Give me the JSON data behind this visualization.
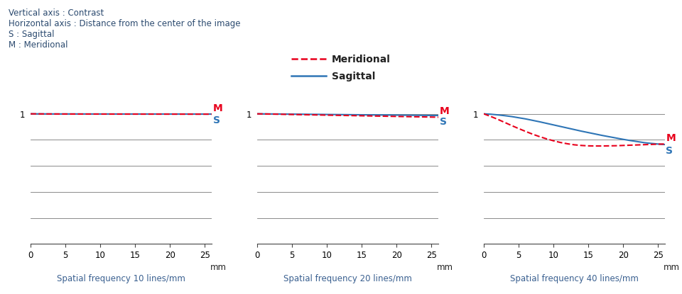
{
  "info_lines": [
    "Vertical axis : Contrast",
    "Horizontal axis : Distance from the center of the image",
    "S : Sagittal",
    "M : Meridional"
  ],
  "subplots": [
    {
      "title": "Spatial frequency 10 lines/mm",
      "meridional": [
        1.0,
        0.9995,
        0.999,
        0.9988,
        0.9986,
        0.9985,
        0.9984,
        0.9983,
        0.9982,
        0.9981,
        0.998,
        0.998,
        0.9979,
        0.9979,
        0.9978,
        0.9978,
        0.9977,
        0.9977,
        0.9977,
        0.9976,
        0.9976,
        0.9975,
        0.9975,
        0.9974,
        0.9974,
        0.9974,
        0.9973
      ],
      "sagittal": [
        1.0,
        0.9997,
        0.9994,
        0.9992,
        0.999,
        0.999,
        0.999,
        0.9989,
        0.9988,
        0.9988,
        0.9987,
        0.9987,
        0.9986,
        0.9986,
        0.9986,
        0.9985,
        0.9985,
        0.9985,
        0.9984,
        0.9984,
        0.9983,
        0.9983,
        0.9982,
        0.9982,
        0.9981,
        0.9981,
        0.998
      ]
    },
    {
      "title": "Spatial frequency 20 lines/mm",
      "meridional": [
        1.0,
        0.999,
        0.998,
        0.997,
        0.996,
        0.995,
        0.994,
        0.993,
        0.992,
        0.991,
        0.99,
        0.989,
        0.988,
        0.987,
        0.986,
        0.985,
        0.984,
        0.983,
        0.982,
        0.981,
        0.98,
        0.979,
        0.978,
        0.977,
        0.976,
        0.975,
        0.974
      ],
      "sagittal": [
        1.0,
        0.9995,
        0.999,
        0.9986,
        0.998,
        0.9975,
        0.997,
        0.9965,
        0.996,
        0.9956,
        0.995,
        0.9945,
        0.994,
        0.9935,
        0.993,
        0.9925,
        0.992,
        0.9915,
        0.991,
        0.9906,
        0.99,
        0.9895,
        0.989,
        0.9886,
        0.988,
        0.9875,
        0.987
      ]
    },
    {
      "title": "Spatial frequency 40 lines/mm",
      "meridional": [
        1.0,
        0.98,
        0.958,
        0.934,
        0.91,
        0.887,
        0.865,
        0.844,
        0.825,
        0.808,
        0.793,
        0.78,
        0.77,
        0.762,
        0.757,
        0.754,
        0.753,
        0.753,
        0.754,
        0.755,
        0.757,
        0.759,
        0.761,
        0.763,
        0.765,
        0.767,
        0.768
      ],
      "sagittal": [
        1.0,
        0.997,
        0.992,
        0.986,
        0.979,
        0.97,
        0.961,
        0.95,
        0.939,
        0.927,
        0.915,
        0.903,
        0.891,
        0.879,
        0.867,
        0.856,
        0.845,
        0.834,
        0.824,
        0.814,
        0.804,
        0.795,
        0.787,
        0.779,
        0.773,
        0.768,
        0.764
      ]
    }
  ],
  "x_values": [
    0,
    1,
    2,
    3,
    4,
    5,
    6,
    7,
    8,
    9,
    10,
    11,
    12,
    13,
    14,
    15,
    16,
    17,
    18,
    19,
    20,
    21,
    22,
    23,
    24,
    25,
    26
  ],
  "xlim": [
    0,
    26
  ],
  "ylim": [
    0,
    1.05
  ],
  "ytick_lines": [
    0.2,
    0.4,
    0.6,
    0.8,
    1.0
  ],
  "xticks": [
    0,
    5,
    10,
    15,
    20,
    25
  ],
  "meridional_color": "#e8001c",
  "sagittal_color": "#2e75b6",
  "grid_color": "#777777",
  "text_color": "#2b4a6f",
  "axis_text_color": "#3a6090",
  "legend_font_size": 10,
  "axis_label_font_size": 8.5,
  "info_font_size": 8.5,
  "tick_font_size": 8.5
}
